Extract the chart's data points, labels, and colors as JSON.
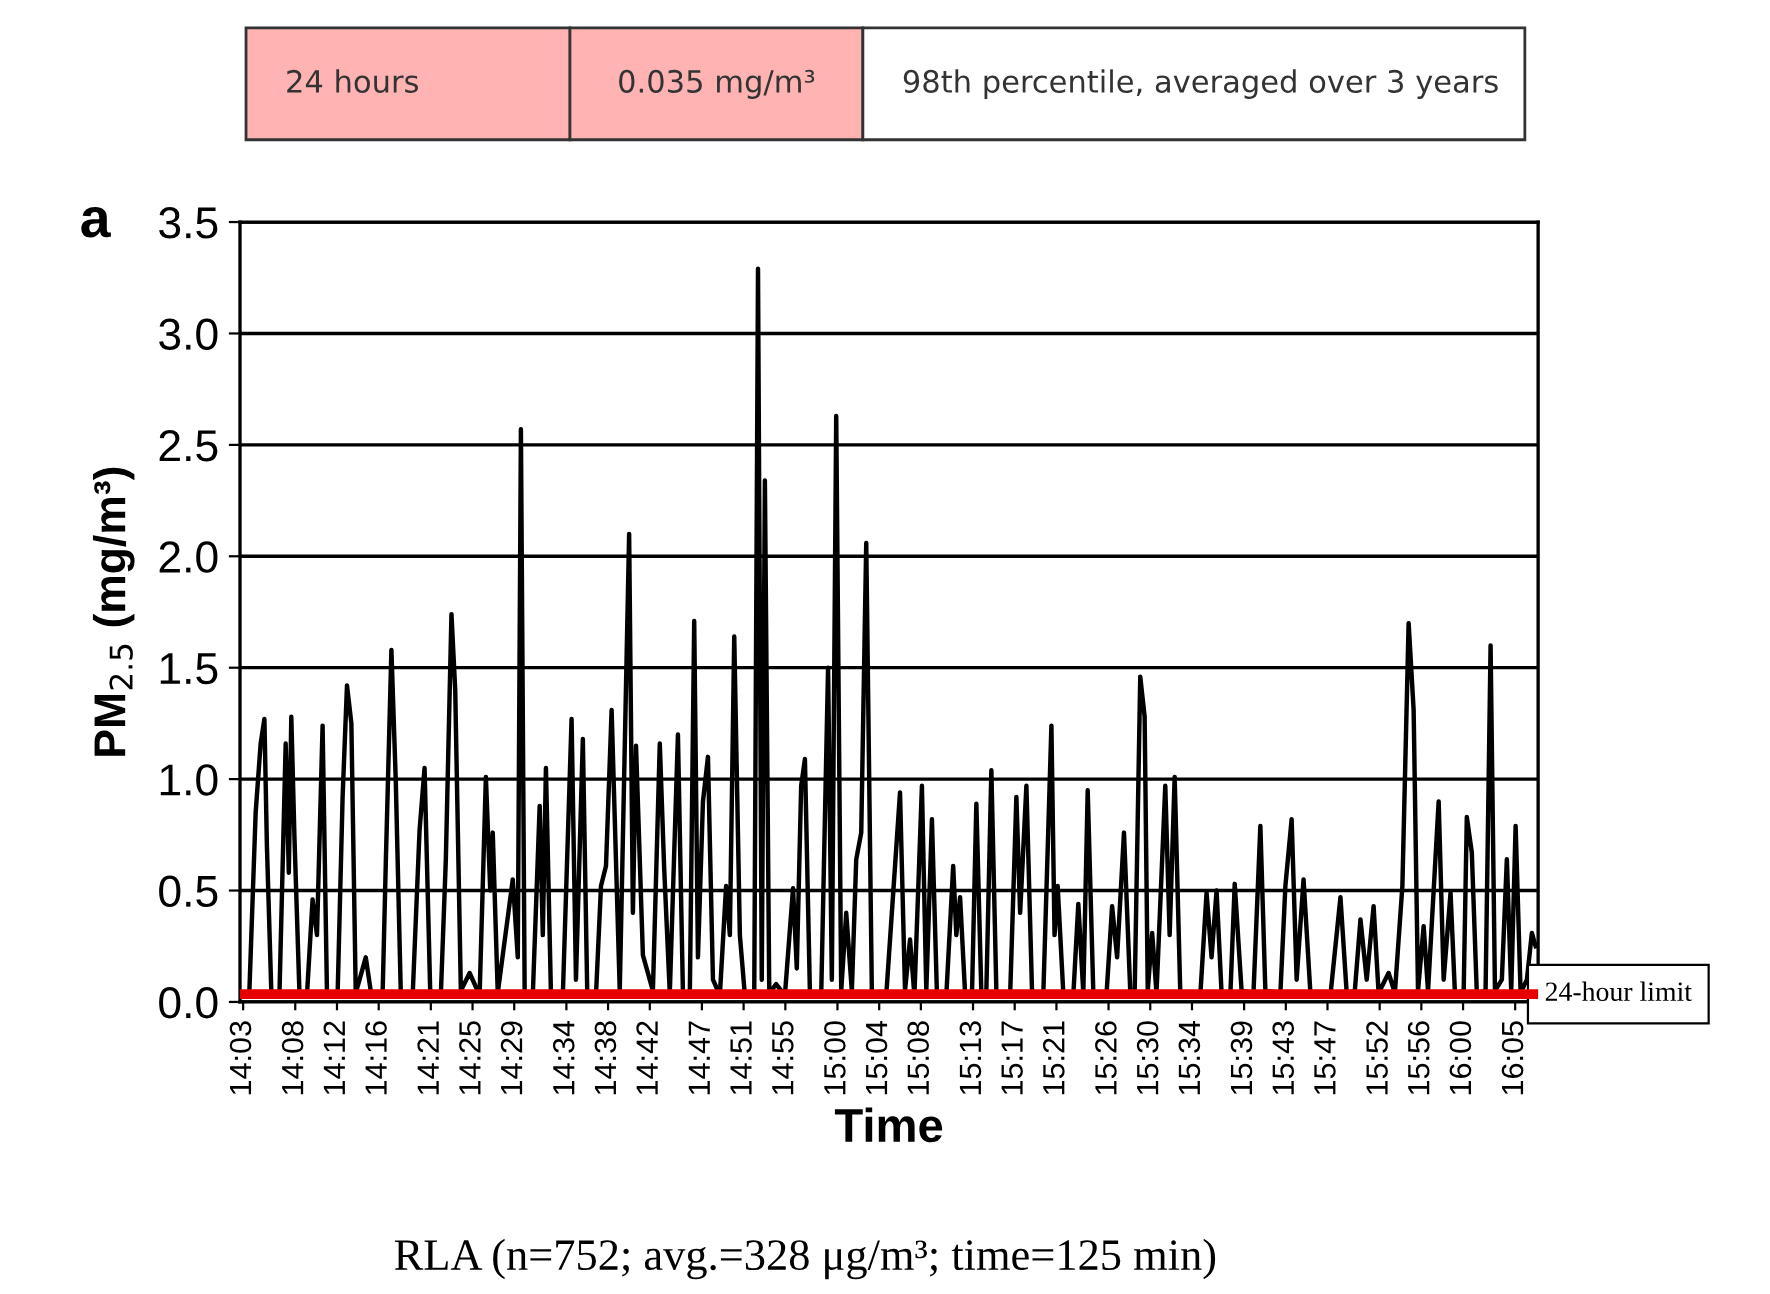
{
  "chart_data": {
    "type": "line",
    "xlabel": "Time",
    "ylabel": "PM$_{2.5}$ (mg/m³)",
    "annotations": [
      "24 hours",
      "0.035 mg/m³",
      "98th percentile, averaged over 3 years",
      "a",
      "RLA (n=752; avg.=328 μg/m³; time=125 min)"
    ],
    "series": [
      {
        "color": "#000000",
        "x": [
          14.05,
          14.06,
          14.07,
          14.078,
          14.084,
          14.088,
          14.095,
          14.108,
          14.118,
          14.123,
          14.127,
          14.132,
          14.14,
          14.152,
          14.161,
          14.168,
          14.177,
          14.184,
          14.201,
          14.209,
          14.216,
          14.223,
          14.23,
          14.246,
          14.255,
          14.273,
          14.278,
          14.287,
          14.294,
          14.302,
          14.321,
          14.332,
          14.34,
          14.349,
          14.366,
          14.374,
          14.383,
          14.389,
          14.398,
          14.412,
          14.428,
          14.438,
          14.445,
          14.449,
          14.457,
          14.481,
          14.489,
          14.494,
          14.5,
          14.513,
          14.524,
          14.529,
          14.534,
          14.542,
          14.561,
          14.575,
          14.582,
          14.593,
          14.6,
          14.614,
          14.622,
          14.63,
          14.639,
          14.652,
          14.667,
          14.673,
          14.678,
          14.689,
          14.705,
          14.716,
          14.723,
          14.732,
          14.745,
          14.753,
          14.764,
          14.771,
          14.777,
          14.785,
          14.793,
          14.801,
          14.812,
          14.822,
          14.828,
          14.835,
          14.844,
          14.852,
          14.867,
          14.873,
          14.879,
          14.884,
          14.891,
          14.902,
          14.916,
          14.929,
          14.935,
          14.942,
          14.948,
          14.956,
          14.974,
          14.985,
          14.991,
          14.998,
          15.006,
          15.014,
          15.023,
          15.03,
          15.038,
          15.046,
          15.055,
          15.078,
          15.1,
          15.108,
          15.116,
          15.123,
          15.135,
          15.142,
          15.151,
          15.159,
          15.174,
          15.185,
          15.19,
          15.196,
          15.204,
          15.215,
          15.222,
          15.23,
          15.238,
          15.246,
          15.254,
          15.276,
          15.286,
          15.292,
          15.302,
          15.311,
          15.329,
          15.342,
          15.347,
          15.352,
          15.361,
          15.377,
          15.385,
          15.393,
          15.4,
          15.409,
          15.43,
          15.439,
          15.447,
          15.458,
          15.468,
          15.475,
          15.484,
          15.491,
          15.496,
          15.503,
          15.51,
          15.524,
          15.531,
          15.539,
          15.548,
          15.58,
          15.59,
          15.598,
          15.606,
          15.614,
          15.628,
          15.635,
          15.646,
          15.665,
          15.676,
          15.684,
          15.708,
          15.716,
          15.726,
          15.734,
          15.745,
          15.756,
          15.788,
          15.804,
          15.814,
          15.827,
          15.836,
          15.846,
          15.857,
          15.865,
          15.881,
          15.891,
          15.903,
          15.913,
          15.921,
          15.928,
          15.937,
          15.944,
          15.961,
          15.969,
          15.98,
          15.987,
          16.001,
          16.006,
          16.014,
          16.022,
          16.036,
          16.044,
          16.051,
          16.062,
          16.07,
          16.077,
          16.084,
          16.092,
          16.102,
          16.11,
          16.116
        ],
        "values": [
          0.03,
          0.05,
          0.85,
          1.16,
          1.27,
          0.7,
          0.05,
          0.03,
          1.16,
          0.58,
          1.28,
          0.74,
          0.04,
          0.03,
          0.46,
          0.3,
          1.24,
          0.04,
          0.03,
          0.92,
          1.42,
          1.25,
          0.04,
          0.2,
          0.03,
          0.04,
          0.62,
          1.58,
          0.99,
          0.04,
          0.03,
          0.77,
          1.05,
          0.05,
          0.03,
          0.64,
          1.74,
          1.4,
          0.05,
          0.13,
          0.03,
          1.01,
          0.5,
          0.76,
          0.04,
          0.55,
          0.2,
          2.57,
          0.04,
          0.03,
          0.88,
          0.3,
          1.05,
          0.04,
          0.03,
          1.27,
          0.1,
          1.18,
          0.05,
          0.03,
          0.52,
          0.61,
          1.31,
          0.05,
          2.1,
          0.4,
          1.15,
          0.21,
          0.05,
          1.16,
          0.6,
          0.04,
          1.2,
          0.04,
          0.03,
          1.71,
          0.2,
          0.9,
          1.1,
          0.1,
          0.03,
          0.52,
          0.3,
          1.64,
          0.3,
          0.03,
          0.04,
          3.29,
          0.1,
          2.34,
          0.04,
          0.08,
          0.03,
          0.51,
          0.15,
          0.97,
          1.09,
          0.04,
          0.03,
          1.5,
          0.1,
          2.63,
          0.05,
          0.4,
          0.05,
          0.64,
          0.76,
          2.06,
          0.04,
          0.03,
          0.94,
          0.05,
          0.28,
          0.03,
          0.97,
          0.05,
          0.82,
          0.04,
          0.03,
          0.61,
          0.3,
          0.47,
          0.04,
          0.03,
          0.89,
          0.04,
          0.05,
          1.04,
          0.05,
          0.03,
          0.92,
          0.4,
          0.97,
          0.05,
          0.03,
          1.24,
          0.3,
          0.52,
          0.04,
          0.03,
          0.44,
          0.04,
          0.95,
          0.04,
          0.03,
          0.43,
          0.2,
          0.76,
          0.05,
          0.03,
          1.46,
          1.28,
          0.05,
          0.31,
          0.04,
          0.97,
          0.3,
          1.01,
          0.04,
          0.03,
          0.49,
          0.2,
          0.5,
          0.04,
          0.03,
          0.53,
          0.05,
          0.04,
          0.79,
          0.05,
          0.04,
          0.52,
          0.82,
          0.1,
          0.55,
          0.04,
          0.03,
          0.47,
          0.04,
          0.05,
          0.37,
          0.1,
          0.43,
          0.04,
          0.13,
          0.04,
          0.52,
          1.7,
          1.31,
          0.05,
          0.34,
          0.05,
          0.9,
          0.1,
          0.49,
          0.04,
          0.05,
          0.83,
          0.67,
          0.04,
          0.05,
          1.6,
          0.05,
          0.1,
          0.64,
          0.05,
          0.79,
          0.04,
          0.1,
          0.31,
          0.25
        ]
      }
    ],
    "xlim": [
      14.045,
      16.12
    ],
    "xticks": [
      {
        "value": 14.05,
        "label": "14:03"
      },
      {
        "value": 14.1333,
        "label": "14:08"
      },
      {
        "value": 14.2,
        "label": "14:12"
      },
      {
        "value": 14.2667,
        "label": "14:16"
      },
      {
        "value": 14.35,
        "label": "14:21"
      },
      {
        "value": 14.4167,
        "label": "14:25"
      },
      {
        "value": 14.4833,
        "label": "14:29"
      },
      {
        "value": 14.5667,
        "label": "14:34"
      },
      {
        "value": 14.6333,
        "label": "14:38"
      },
      {
        "value": 14.7,
        "label": "14:42"
      },
      {
        "value": 14.7833,
        "label": "14:47"
      },
      {
        "value": 14.85,
        "label": "14:51"
      },
      {
        "value": 14.9167,
        "label": "14:55"
      },
      {
        "value": 15.0,
        "label": "15:00"
      },
      {
        "value": 15.0667,
        "label": "15:04"
      },
      {
        "value": 15.1333,
        "label": "15:08"
      },
      {
        "value": 15.2167,
        "label": "15:13"
      },
      {
        "value": 15.2833,
        "label": "15:17"
      },
      {
        "value": 15.35,
        "label": "15:21"
      },
      {
        "value": 15.4333,
        "label": "15:26"
      },
      {
        "value": 15.5,
        "label": "15:30"
      },
      {
        "value": 15.5667,
        "label": "15:34"
      },
      {
        "value": 15.65,
        "label": "15:39"
      },
      {
        "value": 15.7167,
        "label": "15:43"
      },
      {
        "value": 15.7833,
        "label": "15:47"
      },
      {
        "value": 15.8667,
        "label": "15:52"
      },
      {
        "value": 15.9333,
        "label": "15:56"
      },
      {
        "value": 16.0,
        "label": "16:00"
      },
      {
        "value": 16.0833,
        "label": "16:05"
      }
    ],
    "ylim": [
      0,
      3.5
    ],
    "yticks": [
      {
        "value": 0,
        "label": "0.0"
      },
      {
        "value": 0.5,
        "label": "0.5"
      },
      {
        "value": 1,
        "label": "1.0"
      },
      {
        "value": 1.5,
        "label": "1.5"
      },
      {
        "value": 2,
        "label": "2.0"
      },
      {
        "value": 2.5,
        "label": "2.5"
      },
      {
        "value": 3,
        "label": "3.0"
      },
      {
        "value": 3.5,
        "label": "3.5"
      }
    ],
    "grid": "y",
    "ref_lines": [
      {
        "axis": "y",
        "value": 0.035,
        "label": "24-hour limit",
        "color": "#e60000"
      }
    ]
  }
}
